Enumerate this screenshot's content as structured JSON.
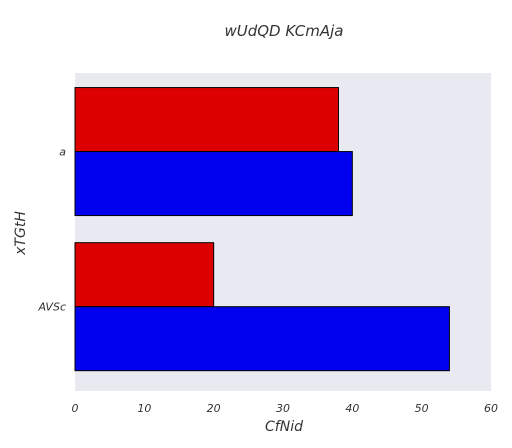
{
  "chart_data": {
    "type": "bar",
    "orientation": "horizontal",
    "title": "wUdQD  KCmAja",
    "xlabel": "CfNid",
    "ylabel": "xTGtH",
    "categories": [
      "a",
      "AVSc"
    ],
    "series": [
      {
        "values": [
          38,
          20
        ],
        "color": "#dd0000"
      },
      {
        "values": [
          40,
          54
        ],
        "color": "#0000ee"
      }
    ],
    "xlim": [
      0,
      60
    ],
    "xticks": [
      0,
      10,
      20,
      30,
      40,
      50,
      60
    ],
    "grid": false,
    "plot_background": "#e9e9f2"
  }
}
